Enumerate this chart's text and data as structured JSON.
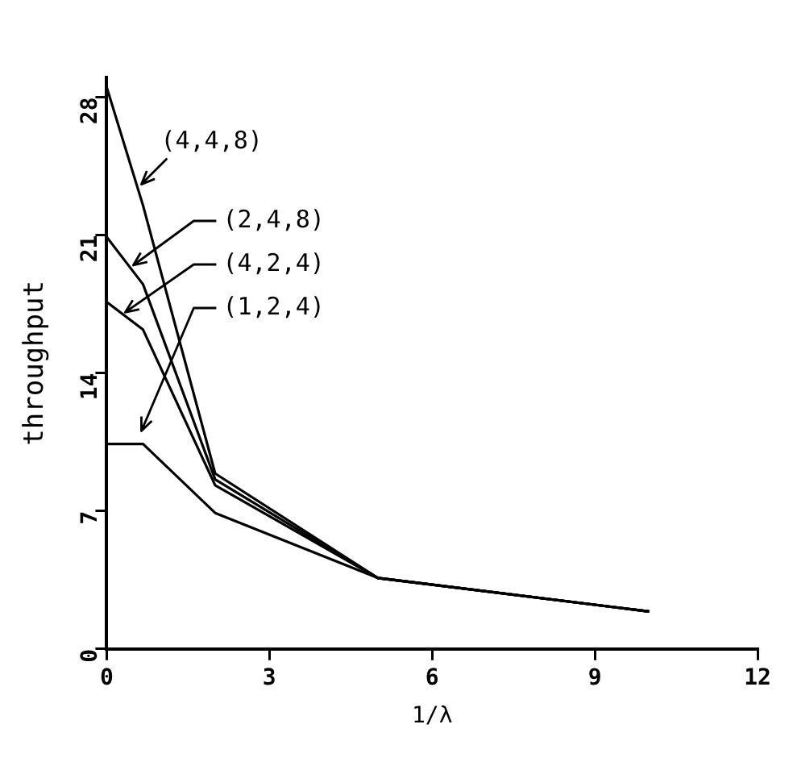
{
  "chart_data": {
    "type": "line",
    "xlabel": "1/λ",
    "ylabel": "throughput",
    "xlim": [
      0,
      12
    ],
    "xticks": [
      0,
      3,
      6,
      9,
      12
    ],
    "ylim": [
      0,
      29
    ],
    "yticks": [
      0,
      7,
      14,
      21,
      28
    ],
    "grid": false,
    "legend": false,
    "marker": "none",
    "line_style": "solid",
    "x": [
      0,
      0.67,
      2,
      5,
      10
    ],
    "series": [
      {
        "name": "(4,4,8)",
        "color": "#000000",
        "values": [
          28.5,
          22.5,
          8.9,
          3.6,
          1.9
        ]
      },
      {
        "name": "(2,4,8)",
        "color": "#000000",
        "values": [
          20.9,
          18.5,
          8.6,
          3.6,
          1.9
        ]
      },
      {
        "name": "(4,2,4)",
        "color": "#000000",
        "values": [
          17.6,
          16.2,
          8.3,
          3.6,
          1.9
        ]
      },
      {
        "name": "(1,2,4)",
        "color": "#000000",
        "values": [
          10.4,
          10.4,
          6.9,
          3.6,
          1.9
        ]
      }
    ]
  }
}
